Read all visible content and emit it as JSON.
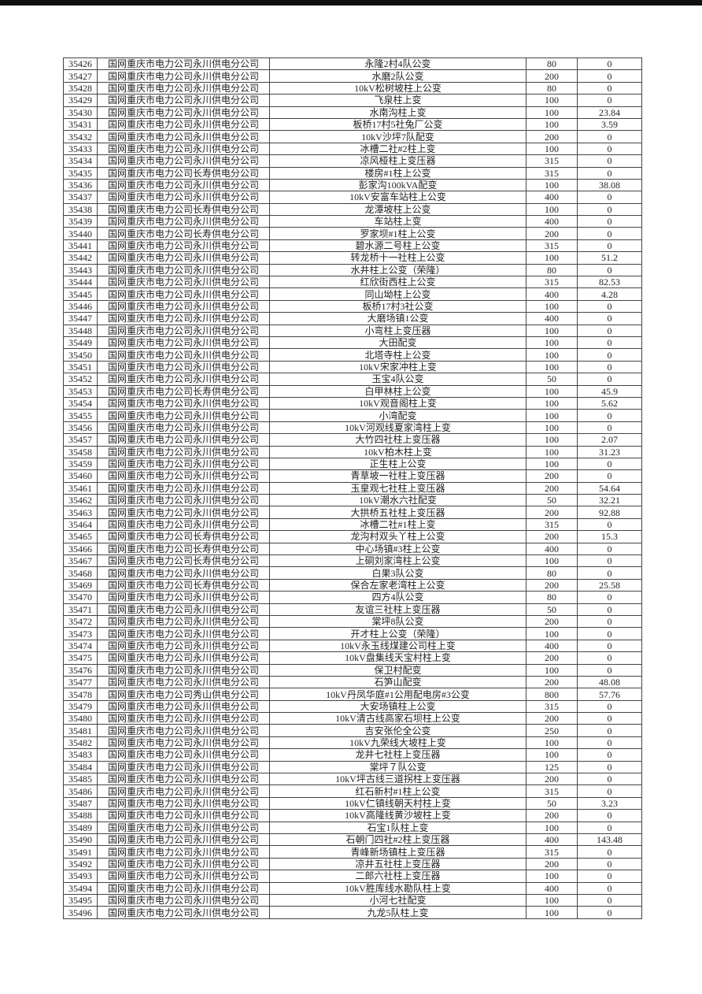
{
  "colors": {
    "text": "#1f1f1f",
    "table_border": "#444444",
    "top_bar": "#101010",
    "background": "#ffffff"
  },
  "table": {
    "columns": [
      "row-id",
      "company",
      "station-name",
      "capacity",
      "value"
    ],
    "rows": [
      [
        "35426",
        "国网重庆市电力公司永川供电分公司",
        "永隆2村4队公变",
        "80",
        "0"
      ],
      [
        "35427",
        "国网重庆市电力公司永川供电分公司",
        "水磨2队公变",
        "200",
        "0"
      ],
      [
        "35428",
        "国网重庆市电力公司永川供电分公司",
        "10kV松树坡柱上公变",
        "80",
        "0"
      ],
      [
        "35429",
        "国网重庆市电力公司永川供电分公司",
        "飞泉柱上变",
        "100",
        "0"
      ],
      [
        "35430",
        "国网重庆市电力公司永川供电分公司",
        "水南沟柱上变",
        "100",
        "23.84"
      ],
      [
        "35431",
        "国网重庆市电力公司永川供电分公司",
        "板桥17村5社兔厂公变",
        "100",
        "3.59"
      ],
      [
        "35432",
        "国网重庆市电力公司永川供电分公司",
        "10kV沙坪7队配变",
        "200",
        "0"
      ],
      [
        "35433",
        "国网重庆市电力公司永川供电分公司",
        "冰槽二社#2柱上变",
        "100",
        "0"
      ],
      [
        "35434",
        "国网重庆市电力公司永川供电分公司",
        "凉风桠柱上变压器",
        "315",
        "0"
      ],
      [
        "35435",
        "国网重庆市电力公司长寿供电分公司",
        "楼房#1柱上公变",
        "315",
        "0"
      ],
      [
        "35436",
        "国网重庆市电力公司永川供电分公司",
        "彭家沟100kVA配变",
        "100",
        "38.08"
      ],
      [
        "35437",
        "国网重庆市电力公司永川供电分公司",
        "10kV安富车站柱上公变",
        "400",
        "0"
      ],
      [
        "35438",
        "国网重庆市电力公司长寿供电分公司",
        "龙潭坡柱上公变",
        "100",
        "0"
      ],
      [
        "35439",
        "国网重庆市电力公司永川供电分公司",
        "车站柱上变",
        "400",
        "0"
      ],
      [
        "35440",
        "国网重庆市电力公司长寿供电分公司",
        "罗家坝#1柱上公变",
        "200",
        "0"
      ],
      [
        "35441",
        "国网重庆市电力公司永川供电分公司",
        "碧水源二号柱上公变",
        "315",
        "0"
      ],
      [
        "35442",
        "国网重庆市电力公司永川供电分公司",
        "转龙桥十一社柱上公变",
        "100",
        "51.2"
      ],
      [
        "35443",
        "国网重庆市电力公司永川供电分公司",
        "水井柱上公变（荣隆）",
        "80",
        "0"
      ],
      [
        "35444",
        "国网重庆市电力公司永川供电分公司",
        "红欣街西柱上公变",
        "315",
        "82.53"
      ],
      [
        "35445",
        "国网重庆市电力公司永川供电分公司",
        "同山坳柱上公变",
        "400",
        "4.28"
      ],
      [
        "35446",
        "国网重庆市电力公司永川供电分公司",
        "板桥17村3社公变",
        "100",
        "0"
      ],
      [
        "35447",
        "国网重庆市电力公司永川供电分公司",
        "大磨场镇1公变",
        "400",
        "0"
      ],
      [
        "35448",
        "国网重庆市电力公司永川供电分公司",
        "小弯柱上变压器",
        "100",
        "0"
      ],
      [
        "35449",
        "国网重庆市电力公司永川供电分公司",
        "大田配变",
        "100",
        "0"
      ],
      [
        "35450",
        "国网重庆市电力公司永川供电分公司",
        "北塔寺柱上公变",
        "100",
        "0"
      ],
      [
        "35451",
        "国网重庆市电力公司永川供电分公司",
        "10kV宋家冲柱上变",
        "100",
        "0"
      ],
      [
        "35452",
        "国网重庆市电力公司永川供电分公司",
        "玉宝4队公变",
        "50",
        "0"
      ],
      [
        "35453",
        "国网重庆市电力公司长寿供电分公司",
        "白甲林柱上公变",
        "100",
        "45.9"
      ],
      [
        "35454",
        "国网重庆市电力公司永川供电分公司",
        "10kV观音阁柱上变",
        "100",
        "5.62"
      ],
      [
        "35455",
        "国网重庆市电力公司永川供电分公司",
        "小湾配变",
        "100",
        "0"
      ],
      [
        "35456",
        "国网重庆市电力公司永川供电分公司",
        "10kV河观线夏家湾柱上变",
        "100",
        "0"
      ],
      [
        "35457",
        "国网重庆市电力公司永川供电分公司",
        "大竹四社柱上变压器",
        "100",
        "2.07"
      ],
      [
        "35458",
        "国网重庆市电力公司永川供电分公司",
        "10kV柏木柱上变",
        "100",
        "31.23"
      ],
      [
        "35459",
        "国网重庆市电力公司永川供电分公司",
        "正生柱上公变",
        "100",
        "0"
      ],
      [
        "35460",
        "国网重庆市电力公司永川供电分公司",
        "青草坡一社柱上变压器",
        "200",
        "0"
      ],
      [
        "35461",
        "国网重庆市电力公司永川供电分公司",
        "玉皇观七社柱上变压器",
        "200",
        "54.64"
      ],
      [
        "35462",
        "国网重庆市电力公司永川供电分公司",
        "10kV潮水六社配变",
        "50",
        "32.21"
      ],
      [
        "35463",
        "国网重庆市电力公司永川供电分公司",
        "大拱桥五社柱上变压器",
        "200",
        "92.88"
      ],
      [
        "35464",
        "国网重庆市电力公司永川供电分公司",
        "冰槽二社#1柱上变",
        "315",
        "0"
      ],
      [
        "35465",
        "国网重庆市电力公司长寿供电分公司",
        "龙沟村双头丫柱上公变",
        "200",
        "15.3"
      ],
      [
        "35466",
        "国网重庆市电力公司长寿供电分公司",
        "中心场镇#3柱上公变",
        "400",
        "0"
      ],
      [
        "35467",
        "国网重庆市电力公司长寿供电分公司",
        "上硐刘家湾柱上公变",
        "100",
        "0"
      ],
      [
        "35468",
        "国网重庆市电力公司永川供电分公司",
        "白果3队公变",
        "80",
        "0"
      ],
      [
        "35469",
        "国网重庆市电力公司长寿供电分公司",
        "保合左家老湾柱上公变",
        "200",
        "25.58"
      ],
      [
        "35470",
        "国网重庆市电力公司永川供电分公司",
        "四方4队公变",
        "80",
        "0"
      ],
      [
        "35471",
        "国网重庆市电力公司永川供电分公司",
        "友谊三社柱上变压器",
        "50",
        "0"
      ],
      [
        "35472",
        "国网重庆市电力公司永川供电分公司",
        "棠坪8队公变",
        "200",
        "0"
      ],
      [
        "35473",
        "国网重庆市电力公司永川供电分公司",
        "开才柱上公变（荣隆）",
        "100",
        "0"
      ],
      [
        "35474",
        "国网重庆市电力公司永川供电分公司",
        "10kV永玉线煤建公司柱上变",
        "400",
        "0"
      ],
      [
        "35475",
        "国网重庆市电力公司永川供电分公司",
        "10kV盘集线天宝村柱上变",
        "200",
        "0"
      ],
      [
        "35476",
        "国网重庆市电力公司永川供电分公司",
        "保卫村配变",
        "100",
        "0"
      ],
      [
        "35477",
        "国网重庆市电力公司永川供电分公司",
        "石笋山配变",
        "200",
        "48.08"
      ],
      [
        "35478",
        "国网重庆市电力公司秀山供电分公司",
        "10kV丹凤华庭#1公用配电房#3公变",
        "800",
        "57.76"
      ],
      [
        "35479",
        "国网重庆市电力公司永川供电分公司",
        "大安场镇柱上公变",
        "315",
        "0"
      ],
      [
        "35480",
        "国网重庆市电力公司永川供电分公司",
        "10kV清古线高家石坝柱上公变",
        "200",
        "0"
      ],
      [
        "35481",
        "国网重庆市电力公司永川供电分公司",
        "吉安张伦全公变",
        "250",
        "0"
      ],
      [
        "35482",
        "国网重庆市电力公司永川供电分公司",
        "10kV九荣线大坡柱上变",
        "100",
        "0"
      ],
      [
        "35483",
        "国网重庆市电力公司永川供电分公司",
        "龙井七社柱上变压器",
        "100",
        "0"
      ],
      [
        "35484",
        "国网重庆市电力公司永川供电分公司",
        "棠坪７队公变",
        "125",
        "0"
      ],
      [
        "35485",
        "国网重庆市电力公司永川供电分公司",
        "10kV坪古线三道拐柱上变压器",
        "200",
        "0"
      ],
      [
        "35486",
        "国网重庆市电力公司永川供电分公司",
        "红石新村#1柱上公变",
        "315",
        "0"
      ],
      [
        "35487",
        "国网重庆市电力公司永川供电分公司",
        "10kV仁镇线朝天村柱上变",
        "50",
        "3.23"
      ],
      [
        "35488",
        "国网重庆市电力公司永川供电分公司",
        "10kV高隆线黄沙坡柱上变",
        "200",
        "0"
      ],
      [
        "35489",
        "国网重庆市电力公司永川供电分公司",
        "石宝1队柱上变",
        "100",
        "0"
      ],
      [
        "35490",
        "国网重庆市电力公司永川供电分公司",
        "石朝门四社#2柱上变压器",
        "400",
        "143.48"
      ],
      [
        "35491",
        "国网重庆市电力公司永川供电分公司",
        "青峰新场镇柱上变压器",
        "315",
        "0"
      ],
      [
        "35492",
        "国网重庆市电力公司永川供电分公司",
        "凉井五社柱上变压器",
        "200",
        "0"
      ],
      [
        "35493",
        "国网重庆市电力公司永川供电分公司",
        "二郎六社柱上变压器",
        "100",
        "0"
      ],
      [
        "35494",
        "国网重庆市电力公司永川供电分公司",
        "10kV胜库线水勘队柱上变",
        "400",
        "0"
      ],
      [
        "35495",
        "国网重庆市电力公司永川供电分公司",
        "小河七社配变",
        "100",
        "0"
      ],
      [
        "35496",
        "国网重庆市电力公司永川供电分公司",
        "九龙5队柱上变",
        "100",
        "0"
      ]
    ]
  }
}
